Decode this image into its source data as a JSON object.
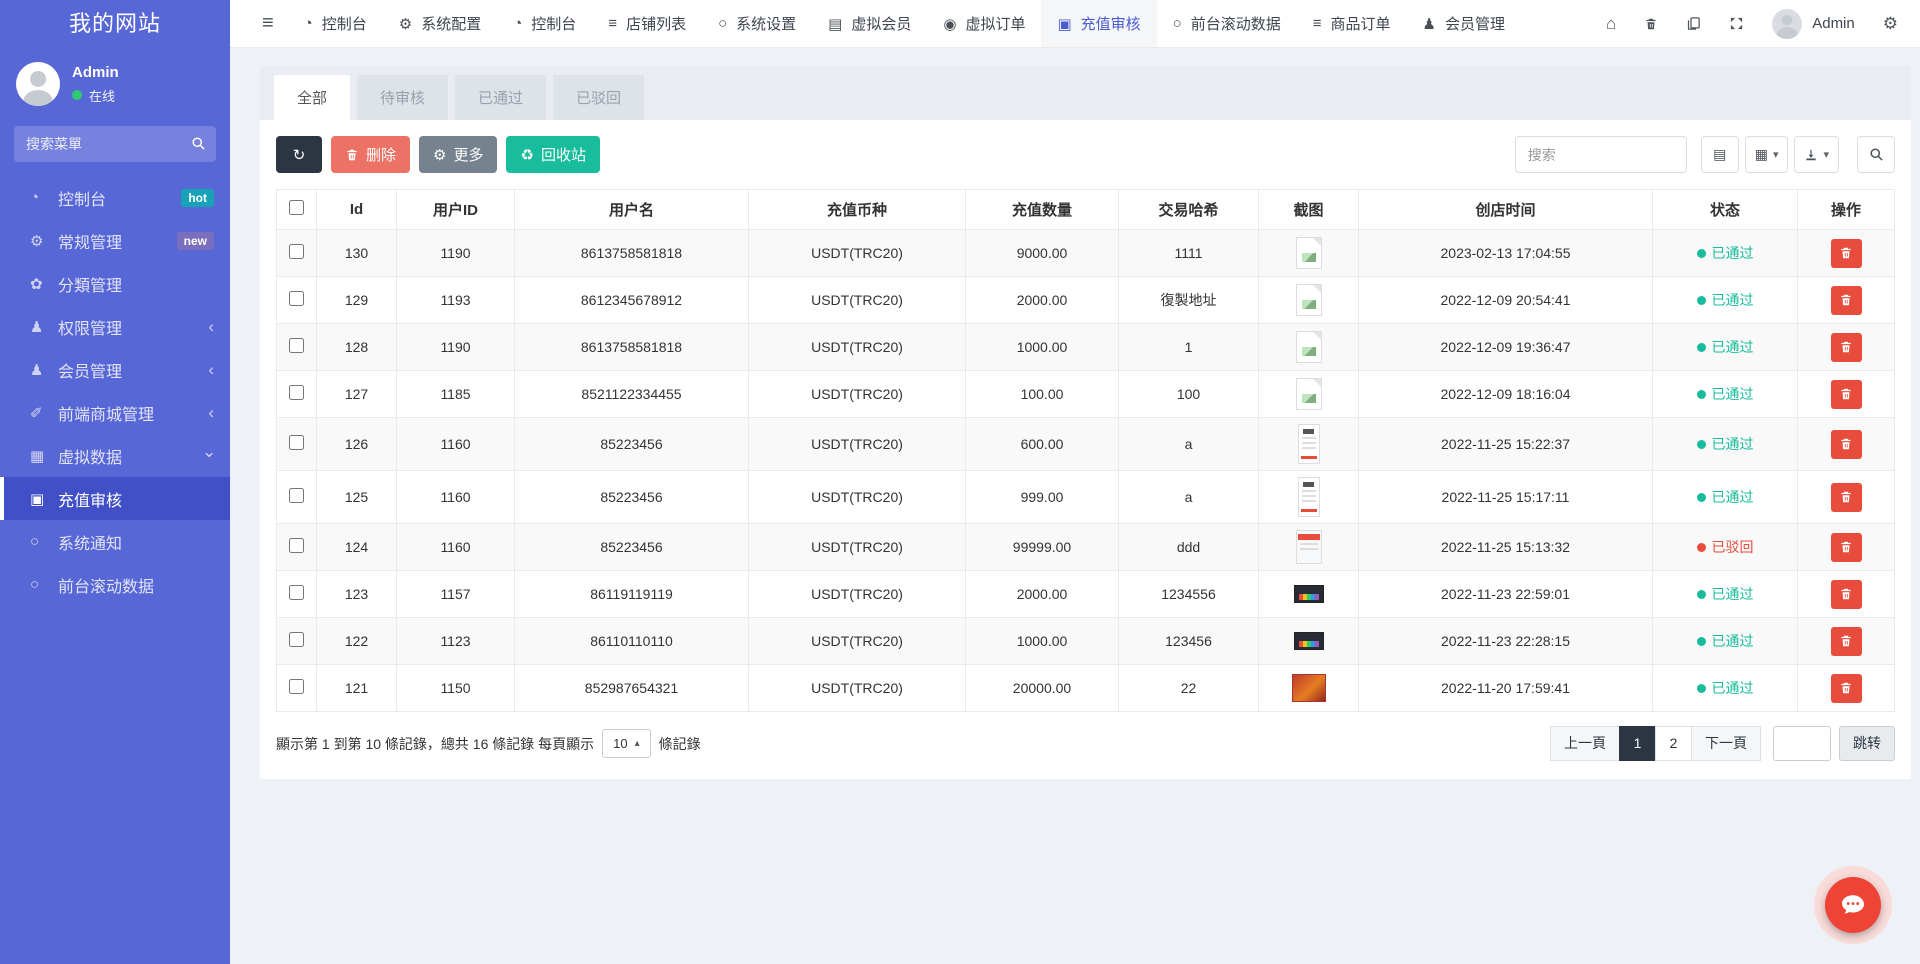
{
  "app": {
    "title": "我的网站"
  },
  "user": {
    "name": "Admin",
    "status": "在线"
  },
  "sidebar": {
    "search_placeholder": "搜索菜單",
    "search_icon": "search-icon",
    "items": [
      {
        "label": "控制台",
        "icon": "dashboard-icon",
        "badge": "hot"
      },
      {
        "label": "常规管理",
        "icon": "gears-icon",
        "badge": "new"
      },
      {
        "label": "分類管理",
        "icon": "leaf-icon"
      },
      {
        "label": "权限管理",
        "icon": "users-icon",
        "chevron": "left"
      },
      {
        "label": "会员管理",
        "icon": "user-icon",
        "chevron": "left"
      },
      {
        "label": "前端商城管理",
        "icon": "magic-icon",
        "chevron": "left"
      },
      {
        "label": "虚拟数据",
        "icon": "calendar-icon",
        "chevron": "down"
      },
      {
        "label": "充值审核",
        "icon": "credit-card-icon",
        "active": true
      },
      {
        "label": "系统通知",
        "icon": "circle-icon"
      },
      {
        "label": "前台滚动数据",
        "icon": "circle-icon"
      }
    ]
  },
  "navbar": {
    "menu_toggle_icon": "bars-icon",
    "items": [
      {
        "label": "控制台",
        "icon": "dashboard-icon"
      },
      {
        "label": "系统配置",
        "icon": "gear-icon"
      },
      {
        "label": "控制台",
        "icon": "dashboard-icon"
      },
      {
        "label": "店铺列表",
        "icon": "list-icon"
      },
      {
        "label": "系统设置",
        "icon": "circle-icon"
      },
      {
        "label": "虚拟会员",
        "icon": "id-card-icon"
      },
      {
        "label": "虚拟订单",
        "icon": "dot-circle-icon"
      },
      {
        "label": "充值审核",
        "icon": "credit-card-icon",
        "active": true
      },
      {
        "label": "前台滚动数据",
        "icon": "circle-icon"
      },
      {
        "label": "商品订单",
        "icon": "list-icon"
      },
      {
        "label": "会员管理",
        "icon": "user-icon"
      }
    ],
    "right_icons": [
      "home-icon",
      "trash-icon",
      "copy-icon",
      "fullscreen-icon"
    ],
    "right_user": "Admin",
    "settings_icon": "gears-icon"
  },
  "tabs": [
    {
      "label": "全部",
      "active": true
    },
    {
      "label": "待审核"
    },
    {
      "label": "已通过"
    },
    {
      "label": "已驳回"
    }
  ],
  "toolbar": {
    "refresh_icon": "refresh-icon",
    "delete_label": "删除",
    "more_label": "更多",
    "recycle_label": "回收站",
    "search_placeholder": "搜索",
    "icons": {
      "delete": "trash-icon",
      "more": "gear-icon",
      "recycle": "recycle-icon",
      "view": "th-list-icon",
      "columns": "grid-icon",
      "export": "export-icon",
      "search": "search-icon"
    }
  },
  "table": {
    "columns": [
      "Id",
      "用户ID",
      "用户名",
      "充值币种",
      "充值数量",
      "交易哈希",
      "截图",
      "创店时间",
      "状态",
      "操作"
    ],
    "rows": [
      {
        "id": "130",
        "user_id": "1190",
        "username": "8613758581818",
        "coin": "USDT(TRC20)",
        "amount": "9000.00",
        "hash": "1111",
        "shot": "doc",
        "time": "2023-02-13 17:04:55",
        "status": "已通过",
        "status_type": "ok"
      },
      {
        "id": "129",
        "user_id": "1193",
        "username": "8612345678912",
        "coin": "USDT(TRC20)",
        "amount": "2000.00",
        "hash": "復製地址",
        "shot": "doc",
        "time": "2022-12-09 20:54:41",
        "status": "已通过",
        "status_type": "ok"
      },
      {
        "id": "128",
        "user_id": "1190",
        "username": "8613758581818",
        "coin": "USDT(TRC20)",
        "amount": "1000.00",
        "hash": "1",
        "shot": "doc",
        "time": "2022-12-09 19:36:47",
        "status": "已通过",
        "status_type": "ok"
      },
      {
        "id": "127",
        "user_id": "1185",
        "username": "8521122334455",
        "coin": "USDT(TRC20)",
        "amount": "100.00",
        "hash": "100",
        "shot": "doc",
        "time": "2022-12-09 18:16:04",
        "status": "已通过",
        "status_type": "ok"
      },
      {
        "id": "126",
        "user_id": "1160",
        "username": "85223456",
        "coin": "USDT(TRC20)",
        "amount": "600.00",
        "hash": "a",
        "shot": "receipt",
        "time": "2022-11-25 15:22:37",
        "status": "已通过",
        "status_type": "ok"
      },
      {
        "id": "125",
        "user_id": "1160",
        "username": "85223456",
        "coin": "USDT(TRC20)",
        "amount": "999.00",
        "hash": "a",
        "shot": "receipt",
        "time": "2022-11-25 15:17:11",
        "status": "已通过",
        "status_type": "ok"
      },
      {
        "id": "124",
        "user_id": "1160",
        "username": "85223456",
        "coin": "USDT(TRC20)",
        "amount": "99999.00",
        "hash": "ddd",
        "shot": "receipt-wide",
        "time": "2022-11-25 15:13:32",
        "status": "已驳回",
        "status_type": "rejected"
      },
      {
        "id": "123",
        "user_id": "1157",
        "username": "86119119119",
        "coin": "USDT(TRC20)",
        "amount": "2000.00",
        "hash": "1234556",
        "shot": "dark",
        "time": "2022-11-23 22:59:01",
        "status": "已通过",
        "status_type": "ok"
      },
      {
        "id": "122",
        "user_id": "1123",
        "username": "86110110110",
        "coin": "USDT(TRC20)",
        "amount": "1000.00",
        "hash": "123456",
        "shot": "dark",
        "time": "2022-11-23 22:28:15",
        "status": "已通过",
        "status_type": "ok"
      },
      {
        "id": "121",
        "user_id": "1150",
        "username": "852987654321",
        "coin": "USDT(TRC20)",
        "amount": "20000.00",
        "hash": "22",
        "shot": "photo",
        "time": "2022-11-20 17:59:41",
        "status": "已通过",
        "status_type": "ok"
      }
    ]
  },
  "pagination": {
    "summary_prefix": "顯示第 1 到第 10 條記錄，總共 16 條記錄 每頁顯示",
    "page_size": "10",
    "summary_suffix": "條記錄",
    "prev": "上一頁",
    "next": "下一頁",
    "pages": [
      {
        "label": "1",
        "active": true
      },
      {
        "label": "2"
      }
    ],
    "jump": "跳转"
  },
  "fab": {
    "icon": "chat-icon"
  },
  "colors": {
    "sidebar": "#5867d6",
    "sidebar-active": "#4150c6",
    "accent": "#4a5cd0",
    "success": "#18bc9c",
    "danger": "#e74c3c",
    "dark": "#2c3542",
    "btn-delete": "#ec7266",
    "btn-more": "#76838f",
    "btn-recycle": "#19bc9c",
    "badge-hot": "#17a2b8",
    "badge-new": "#7a6fbe",
    "online": "#2ecc71",
    "fab": "#ef4337"
  }
}
